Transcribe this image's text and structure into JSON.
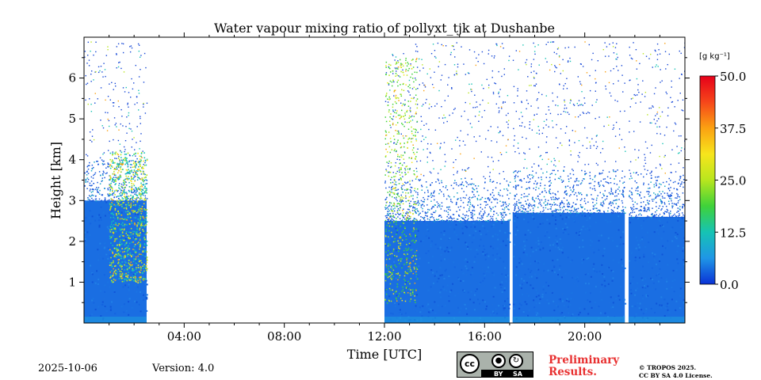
{
  "chart_data": {
    "type": "heatmap",
    "title": "Water vapour mixing ratio of pollyxt_tjk at Dushanbe",
    "xlabel": "Time [UTC]",
    "ylabel": "Height [km]",
    "xlim_hours": [
      0,
      24
    ],
    "ylim_km": [
      0,
      7
    ],
    "x_ticks": [
      {
        "value": 4,
        "label": "04:00"
      },
      {
        "value": 8,
        "label": "08:00"
      },
      {
        "value": 12,
        "label": "12:00"
      },
      {
        "value": 16,
        "label": "16:00"
      },
      {
        "value": 20,
        "label": "20:00"
      }
    ],
    "y_ticks": [
      {
        "value": 1,
        "label": "1"
      },
      {
        "value": 2,
        "label": "2"
      },
      {
        "value": 3,
        "label": "3"
      },
      {
        "value": 4,
        "label": "4"
      },
      {
        "value": 5,
        "label": "5"
      },
      {
        "value": 6,
        "label": "6"
      }
    ],
    "colorbar": {
      "unit_label": "[g kg⁻¹]",
      "range": [
        0,
        50
      ],
      "ticks": [
        "0.0",
        "12.5",
        "25.0",
        "37.5",
        "50.0"
      ],
      "colors": [
        "#0a32d6",
        "#1f96e6",
        "#16c3b4",
        "#3fd23a",
        "#b8e61e",
        "#f7e51c",
        "#fba112",
        "#f6461a",
        "#e6001a"
      ]
    },
    "data_segments": [
      {
        "start_h": 0.0,
        "end_h": 2.5,
        "dense_top_km": 3.0,
        "scatter_top_km": 6.9
      },
      {
        "start_h": 12.0,
        "end_h": 17.0,
        "dense_top_km": 2.5,
        "scatter_top_km": 6.9
      },
      {
        "start_h": 17.12,
        "end_h": 21.6,
        "dense_top_km": 2.7,
        "scatter_top_km": 6.9
      },
      {
        "start_h": 21.75,
        "end_h": 24.0,
        "dense_top_km": 2.6,
        "scatter_top_km": 6.9
      }
    ],
    "gaps_hours": [
      [
        2.5,
        12.0
      ],
      [
        17.0,
        17.12
      ],
      [
        21.6,
        21.75
      ]
    ]
  },
  "footer": {
    "date": "2025-10-06",
    "version": "Version: 4.0",
    "cc_label": "cc",
    "cc_by": "BY",
    "cc_sa": "SA",
    "prelim_line1": "Preliminary",
    "prelim_line2": "Results.",
    "copyright_line1": "© TROPOS 2025.",
    "copyright_line2": "CC BY SA 4.0 License."
  }
}
